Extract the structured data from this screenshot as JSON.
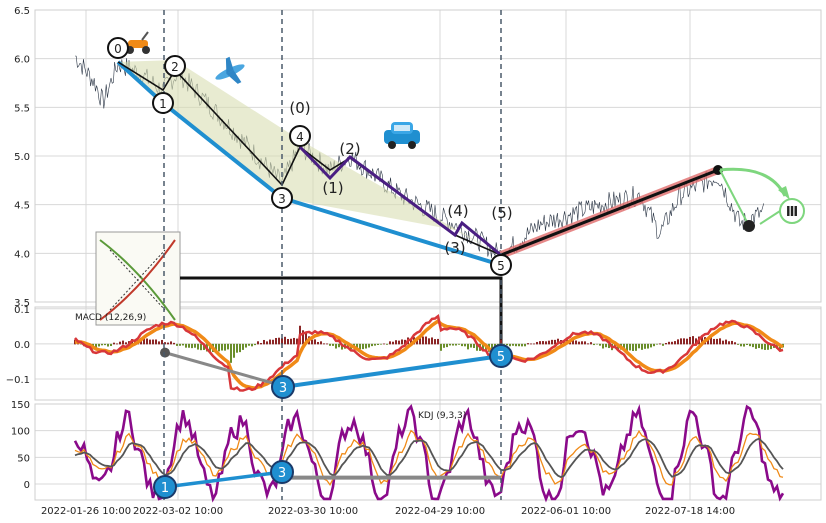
{
  "colors": {
    "price": "#2a3545",
    "wave_blue": "#1f8fd0",
    "wave_purple": "#4a1e82",
    "wave_black": "#111111",
    "wave_red": "#e06c6c",
    "wave_green": "#7ed67e",
    "fill_olive": "#d9deb2",
    "macd_line": "#d8373a",
    "signal_line": "#f08a17",
    "hist_pos": "#8b2525",
    "hist_neg": "#6a8e2b",
    "kdj_j": "#8a0a8a",
    "kdj_k": "#f08a17",
    "kdj_d": "#555555",
    "gray_link": "#888888",
    "vline": "#4a5a6a",
    "grid": "#d8d8d8"
  },
  "icons": [
    "scooter-icon",
    "airplane-icon",
    "car-icon",
    "diamond-pattern-thumbnail",
    "roman-three-icon"
  ],
  "chart_data": [
    {
      "type": "line",
      "panel": "price",
      "title": "",
      "x_ticks": [
        "2022-01-26 10:00",
        "2022-03-02 10:00",
        "2022-03-30 10:00",
        "2022-04-29 10:00",
        "2022-06-01 10:00",
        "2022-07-18 14:00"
      ],
      "ylim": [
        3.5,
        6.5
      ],
      "y_ticks": [
        "3.5",
        "4.0",
        "4.5",
        "5.0",
        "5.5",
        "6.0",
        "6.5"
      ],
      "series": [
        {
          "values_shape": "noisy_downtrend_then_range",
          "start": 6.03,
          "min": 3.9,
          "end": 4.43
        }
      ],
      "wave_points": [
        {
          "label": "0",
          "t": 0.14,
          "y": 5.95
        },
        {
          "label": "1",
          "t": 0.196,
          "y": 5.67
        },
        {
          "label": "2",
          "t": 0.218,
          "y": 5.86
        },
        {
          "label": "3",
          "t": 0.342,
          "y": 4.7
        },
        {
          "label": "4",
          "t": 0.362,
          "y": 5.1
        },
        {
          "label": "5",
          "t": 0.605,
          "y": 3.98
        }
      ],
      "sub_wave_labels": [
        "(0)",
        "(1)",
        "(2)",
        "(3)",
        "(4)",
        "(5)"
      ],
      "extra_marker": "Ⅲ"
    },
    {
      "type": "line",
      "panel": "macd",
      "title": "MACD (12,26,9)",
      "ylim": [
        -0.15,
        0.1
      ],
      "y_ticks": [
        "−0.1",
        "0.0",
        "0.1"
      ],
      "markers": [
        {
          "label": "3",
          "y": -0.12
        },
        {
          "label": "5",
          "y": -0.035
        }
      ]
    },
    {
      "type": "line",
      "panel": "kdj",
      "title": "KDJ (9,3,3)",
      "ylim": [
        -30,
        150
      ],
      "y_ticks": [
        "0",
        "50",
        "100",
        "150"
      ],
      "markers": [
        {
          "label": "1",
          "y": -10
        },
        {
          "label": "3",
          "y": 15
        }
      ]
    }
  ],
  "labels": {
    "macd_title": "MACD (12,26,9)",
    "kdj_title": "KDJ (9,3,3)",
    "roman_three": "Ⅲ",
    "w0": "0",
    "w1": "1",
    "w2": "2",
    "w3": "3",
    "w4": "4",
    "w5": "5",
    "p0": "(0)",
    "p1": "(1)",
    "p2": "(2)",
    "p3": "(3)",
    "p4": "(4)",
    "p5": "(5)",
    "m3": "3",
    "m5": "5",
    "k1": "1",
    "k3": "3"
  }
}
